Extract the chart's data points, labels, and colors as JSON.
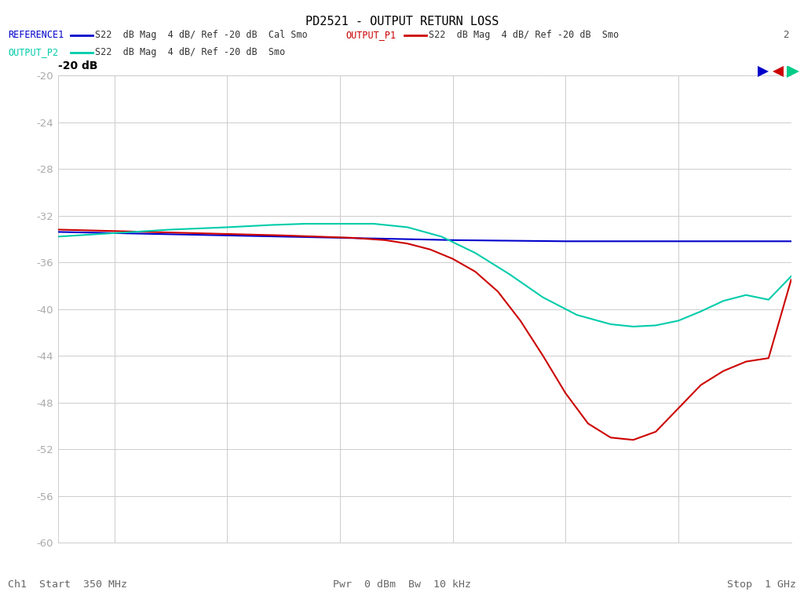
{
  "title": "PD2521 - OUTPUT RETURN LOSS",
  "title_fontsize": 11,
  "bg_color": "#ffffff",
  "xmin": 350,
  "xmax": 1000,
  "ymin": -60,
  "ymax": -20,
  "yticks": [
    -20,
    -24,
    -28,
    -32,
    -36,
    -40,
    -44,
    -48,
    -52,
    -56,
    -60
  ],
  "trace_ref": {
    "color": "#0000cc",
    "x": [
      350,
      400,
      450,
      500,
      550,
      600,
      650,
      700,
      750,
      800,
      850,
      900,
      950,
      1000
    ],
    "y": [
      -33.4,
      -33.5,
      -33.6,
      -33.7,
      -33.8,
      -33.9,
      -34.0,
      -34.1,
      -34.15,
      -34.2,
      -34.2,
      -34.2,
      -34.2,
      -34.2
    ]
  },
  "trace_p1": {
    "color": "#cc0000",
    "x": [
      350,
      390,
      430,
      470,
      510,
      550,
      580,
      610,
      640,
      660,
      680,
      700,
      720,
      740,
      760,
      780,
      800,
      820,
      840,
      860,
      880,
      900,
      920,
      940,
      960,
      980,
      1000
    ],
    "y": [
      -33.2,
      -33.3,
      -33.4,
      -33.5,
      -33.6,
      -33.7,
      -33.8,
      -33.9,
      -34.1,
      -34.4,
      -34.9,
      -35.7,
      -36.8,
      -38.5,
      -41.0,
      -44.0,
      -47.2,
      -49.8,
      -51.0,
      -51.2,
      -50.5,
      -48.5,
      -46.5,
      -45.3,
      -44.5,
      -44.2,
      -37.5
    ]
  },
  "trace_p2": {
    "color": "#00ccaa",
    "x": [
      350,
      400,
      450,
      500,
      540,
      570,
      600,
      630,
      660,
      690,
      720,
      750,
      780,
      810,
      840,
      860,
      880,
      900,
      920,
      940,
      960,
      980,
      1000
    ],
    "y": [
      -33.8,
      -33.5,
      -33.2,
      -33.0,
      -32.8,
      -32.7,
      -32.7,
      -32.7,
      -33.0,
      -33.8,
      -35.2,
      -37.0,
      -39.0,
      -40.5,
      -41.3,
      -41.5,
      -41.4,
      -41.0,
      -40.2,
      -39.3,
      -38.8,
      -39.2,
      -37.2
    ]
  },
  "legend_row1_left_label": "REFERENCE1",
  "legend_row1_left_desc": "S22  dB Mag  4 dB/ Ref -20 dB  Cal Smo",
  "legend_row1_left_color": "#0000cc",
  "legend_row1_right_label": "OUTPUT_P1",
  "legend_row1_right_desc": "S22  dB Mag  4 dB/ Ref -20 dB  Smo",
  "legend_row1_right_color": "#cc0000",
  "legend_row2_left_label": "OUTPUT_P2",
  "legend_row2_left_desc": "S22  dB Mag  4 dB/ Ref -20 dB  Smo",
  "legend_row2_left_color": "#00ccaa",
  "label_20db": "-20 dB",
  "bottom_left": "Ch1  Start  350 MHz",
  "bottom_center": "Pwr  0 dBm  Bw  10 kHz",
  "bottom_right": "Stop  1 GHz",
  "num2_label": "2",
  "grid_color": "#cccccc",
  "tick_color": "#aaaaaa",
  "text_color": "#666666"
}
